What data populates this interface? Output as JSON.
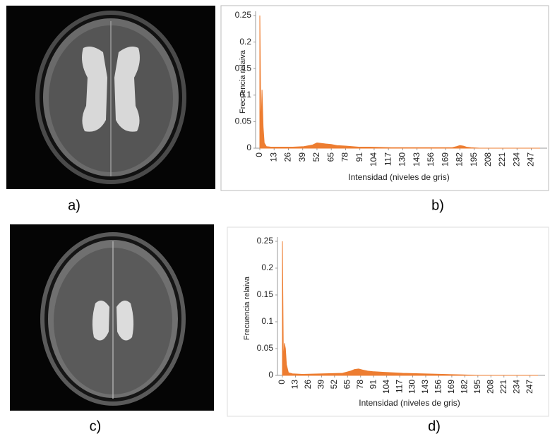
{
  "panel_labels": [
    "a)",
    "b)",
    "c)",
    "d)"
  ],
  "chart_data": [
    {
      "type": "area",
      "xlabel": "Intensidad (niveles de gris)",
      "ylabel": "Frecuencia relaiva",
      "x": [
        0,
        1,
        2,
        3,
        4,
        6,
        10,
        20,
        30,
        40,
        48,
        52,
        56,
        60,
        65,
        70,
        78,
        90,
        100,
        120,
        140,
        160,
        175,
        179,
        182,
        185,
        188,
        192,
        200,
        220,
        255
      ],
      "values": [
        0.25,
        0.03,
        0.11,
        0.04,
        0.01,
        0.003,
        0.002,
        0.002,
        0.002,
        0.003,
        0.006,
        0.01,
        0.009,
        0.008,
        0.007,
        0.005,
        0.004,
        0.002,
        0.002,
        0.001,
        0.001,
        0.001,
        0.001,
        0.003,
        0.005,
        0.004,
        0.002,
        0.001,
        0,
        0,
        0
      ],
      "color": "#ed7d31",
      "xlim": [
        0,
        255
      ],
      "ylim": [
        0,
        0.25
      ],
      "xticks": [
        0,
        13,
        26,
        39,
        52,
        65,
        78,
        91,
        104,
        117,
        130,
        143,
        156,
        169,
        182,
        195,
        208,
        221,
        234,
        247
      ],
      "yticks": [
        0,
        0.05,
        0.1,
        0.15,
        0.2,
        0.25
      ]
    },
    {
      "type": "area",
      "xlabel": "Intensidad (niveles de gris)",
      "ylabel": "Frecuencia relaiva",
      "x": [
        0,
        1,
        2,
        3,
        4,
        6,
        10,
        20,
        40,
        60,
        68,
        72,
        76,
        80,
        85,
        90,
        100,
        120,
        140,
        160,
        180,
        195,
        255
      ],
      "values": [
        0.25,
        0.02,
        0.06,
        0.05,
        0.02,
        0.005,
        0.003,
        0.002,
        0.003,
        0.004,
        0.008,
        0.011,
        0.012,
        0.01,
        0.008,
        0.007,
        0.006,
        0.004,
        0.003,
        0.002,
        0.001,
        0,
        0
      ],
      "color": "#ed7d31",
      "xlim": [
        0,
        255
      ],
      "ylim": [
        0,
        0.25
      ],
      "xticks": [
        0,
        13,
        26,
        39,
        52,
        65,
        78,
        91,
        104,
        117,
        130,
        143,
        156,
        169,
        182,
        195,
        208,
        221,
        234,
        247
      ],
      "yticks": [
        0,
        0.05,
        0.1,
        0.15,
        0.2,
        0.25
      ]
    }
  ]
}
